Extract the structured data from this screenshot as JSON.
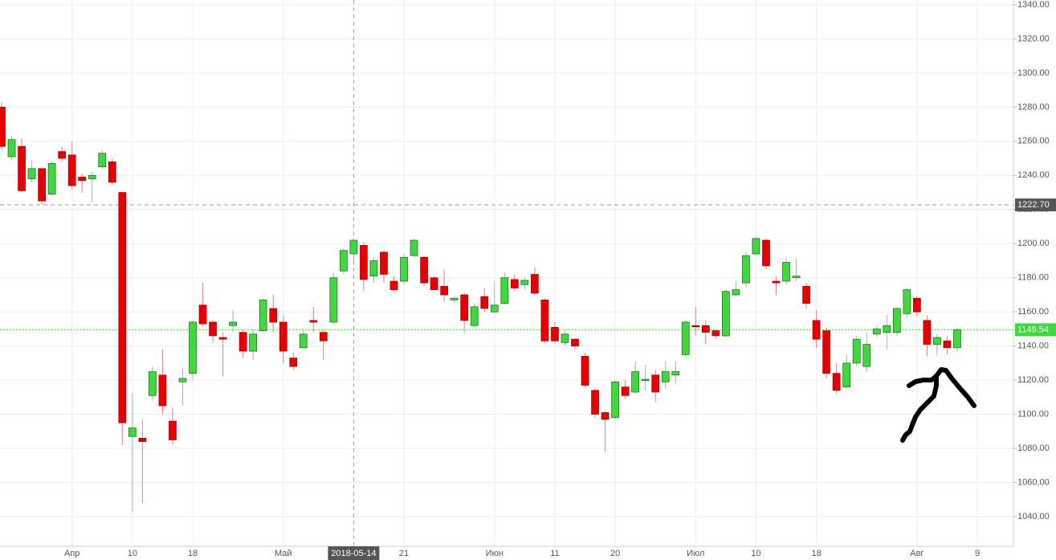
{
  "chart_data": {
    "type": "candlestick",
    "categories": [
      null,
      null,
      null,
      null,
      null,
      null,
      null,
      "Апр",
      null,
      null,
      null,
      null,
      null,
      "10",
      null,
      null,
      null,
      null,
      null,
      "18",
      null,
      null,
      null,
      null,
      null,
      null,
      null,
      null,
      "Май",
      null,
      null,
      null,
      null,
      null,
      null,
      "2018-05-14",
      null,
      null,
      null,
      null,
      "21",
      null,
      null,
      null,
      null,
      null,
      null,
      null,
      null,
      "Июн",
      null,
      null,
      null,
      null,
      null,
      "11",
      null,
      null,
      null,
      null,
      null,
      "20",
      null,
      null,
      null,
      null,
      null,
      null,
      null,
      "Июл",
      null,
      null,
      null,
      null,
      null,
      "10",
      null,
      null,
      null,
      null,
      null,
      "18",
      null,
      null,
      null,
      null,
      null,
      null,
      null,
      null,
      null,
      "Авг",
      null,
      null,
      null,
      null,
      null,
      "9"
    ],
    "open": [
      1280,
      1251,
      1257,
      1238,
      1244,
      1229,
      1254,
      1252,
      1239,
      1238,
      1245,
      1248,
      1230,
      1087,
      1086,
      1111,
      1123,
      1096,
      1119,
      1124,
      1164,
      1154,
      1145,
      1152,
      1148,
      1137,
      1149,
      1162,
      1154,
      1133,
      1139,
      1155,
      1148,
      1154,
      1184,
      1194,
      1199,
      1181,
      1195,
      1178,
      1178,
      1193,
      1192,
      1180,
      1175,
      1167,
      1170,
      1152,
      1169,
      1160,
      1165,
      1179,
      1176,
      1182,
      1167,
      1151,
      1142,
      1144,
      1134,
      1114,
      1101,
      1098,
      1116,
      1113,
      1120,
      1123,
      1119,
      1123,
      1135,
      1152,
      1152,
      1149,
      1146,
      1170,
      1177,
      1194,
      1202,
      1178,
      1178,
      1180,
      1175,
      1155,
      1149,
      1124,
      1116,
      1130,
      1128,
      1147,
      1148,
      1148,
      1159,
      1168,
      1155,
      1141,
      1143,
      1139,
      null,
      null
    ],
    "high": [
      1283,
      1263,
      1262,
      1249,
      1244,
      1248,
      1257,
      1260,
      1241,
      1242,
      1255,
      1250,
      1230,
      1112,
      1097,
      1128,
      1138,
      1104,
      1127,
      1155,
      1177,
      1155,
      1148,
      1161,
      1150,
      1150,
      1168,
      1170,
      1158,
      1136,
      1149,
      1163,
      1150,
      1183,
      1197,
      1203,
      1201,
      1192,
      1196,
      1181,
      1194,
      1203,
      1193,
      1181,
      1185,
      1169,
      1171,
      1165,
      1174,
      1178,
      1183,
      1182,
      1180,
      1186,
      1168,
      1154,
      1149,
      1145,
      1136,
      1115,
      1102,
      1120,
      1120,
      1131,
      1129,
      1126,
      1131,
      1131,
      1155,
      1163,
      1155,
      1149,
      1173,
      1178,
      1195,
      1204,
      1203,
      1181,
      1192,
      1191,
      1177,
      1161,
      1151,
      1130,
      1135,
      1146,
      1148,
      1152,
      1158,
      1163,
      1174,
      1169,
      1158,
      1147,
      1146,
      1151,
      null,
      null
    ],
    "low": [
      1255,
      1249,
      1230,
      1236,
      1223,
      1228,
      1248,
      1232,
      1230,
      1224,
      1244,
      1235,
      1082,
      1043,
      1048,
      1108,
      1100,
      1082,
      1105,
      1120,
      1152,
      1142,
      1122,
      1148,
      1133,
      1132,
      1148,
      1148,
      1130,
      1126,
      1139,
      1148,
      1132,
      1153,
      1182,
      1190,
      1172,
      1177,
      1177,
      1172,
      1176,
      1192,
      1175,
      1173,
      1166,
      1165,
      1148,
      1151,
      1160,
      1159,
      1164,
      1172,
      1173,
      1170,
      1142,
      1142,
      1140,
      1138,
      1116,
      1098,
      1078,
      1097,
      1109,
      1112,
      1114,
      1107,
      1115,
      1118,
      1134,
      1146,
      1141,
      1144,
      1145,
      1169,
      1175,
      1193,
      1185,
      1170,
      1176,
      1178,
      1162,
      1139,
      1121,
      1112,
      1115,
      1128,
      1125,
      1145,
      1138,
      1146,
      1157,
      1157,
      1134,
      1134,
      1135,
      1137,
      null,
      null
    ],
    "close": [
      1257,
      1261,
      1231,
      1244,
      1225,
      1247,
      1250,
      1234,
      1237,
      1240,
      1253,
      1236,
      1095,
      1092,
      1084,
      1125,
      1105,
      1085,
      1121,
      1154,
      1153,
      1146,
      1144,
      1154,
      1137,
      1147,
      1167,
      1154,
      1137,
      1128,
      1147,
      1154,
      1143,
      1180,
      1196,
      1202,
      1179,
      1190,
      1182,
      1173,
      1192,
      1202,
      1177,
      1173,
      1170,
      1168,
      1155,
      1163,
      1162,
      1164,
      1180,
      1174,
      1178.5,
      1171,
      1143,
      1143,
      1147,
      1140,
      1117,
      1100,
      1097,
      1119,
      1111,
      1125,
      1120.5,
      1113,
      1125,
      1125,
      1154,
      1151.5,
      1148,
      1146,
      1172,
      1173,
      1193,
      1203,
      1187,
      1177,
      1189,
      1181,
      1165,
      1144,
      1124,
      1114,
      1130,
      1144,
      1141,
      1150,
      1152,
      1162,
      1173,
      1160,
      1141,
      1145,
      1139,
      1149.54,
      null,
      null
    ],
    "up_color": "#3fd83f",
    "down_color": "#e60000",
    "ylim": [
      1022.6,
      1342.8
    ],
    "yticks": [
      {
        "value": 1040,
        "label": "1040.00"
      },
      {
        "value": 1060,
        "label": "1060.00"
      },
      {
        "value": 1080,
        "label": "1080.00"
      },
      {
        "value": 1100,
        "label": "1100.00"
      },
      {
        "value": 1120,
        "label": "1120.00"
      },
      {
        "value": 1140,
        "label": "1140.00"
      },
      {
        "value": 1160,
        "label": "1160.00"
      },
      {
        "value": 1180,
        "label": "1180.00"
      },
      {
        "value": 1200,
        "label": "1200.00"
      },
      {
        "value": 1220,
        "label": "1220.00"
      },
      {
        "value": 1240,
        "label": "1240.00"
      },
      {
        "value": 1260,
        "label": "1260.00"
      },
      {
        "value": 1280,
        "label": "1280.00"
      },
      {
        "value": 1300,
        "label": "1300.00"
      },
      {
        "value": 1320,
        "label": "1320.00"
      },
      {
        "value": 1340,
        "label": "1340.00"
      }
    ],
    "grid": true,
    "crosshair": {
      "x": "2018-05-14",
      "y": {
        "value": 1222.7,
        "label": "1222.70"
      }
    },
    "last_price": {
      "value": 1149.54,
      "label": "1149.54",
      "color": "#3fd83f"
    }
  }
}
